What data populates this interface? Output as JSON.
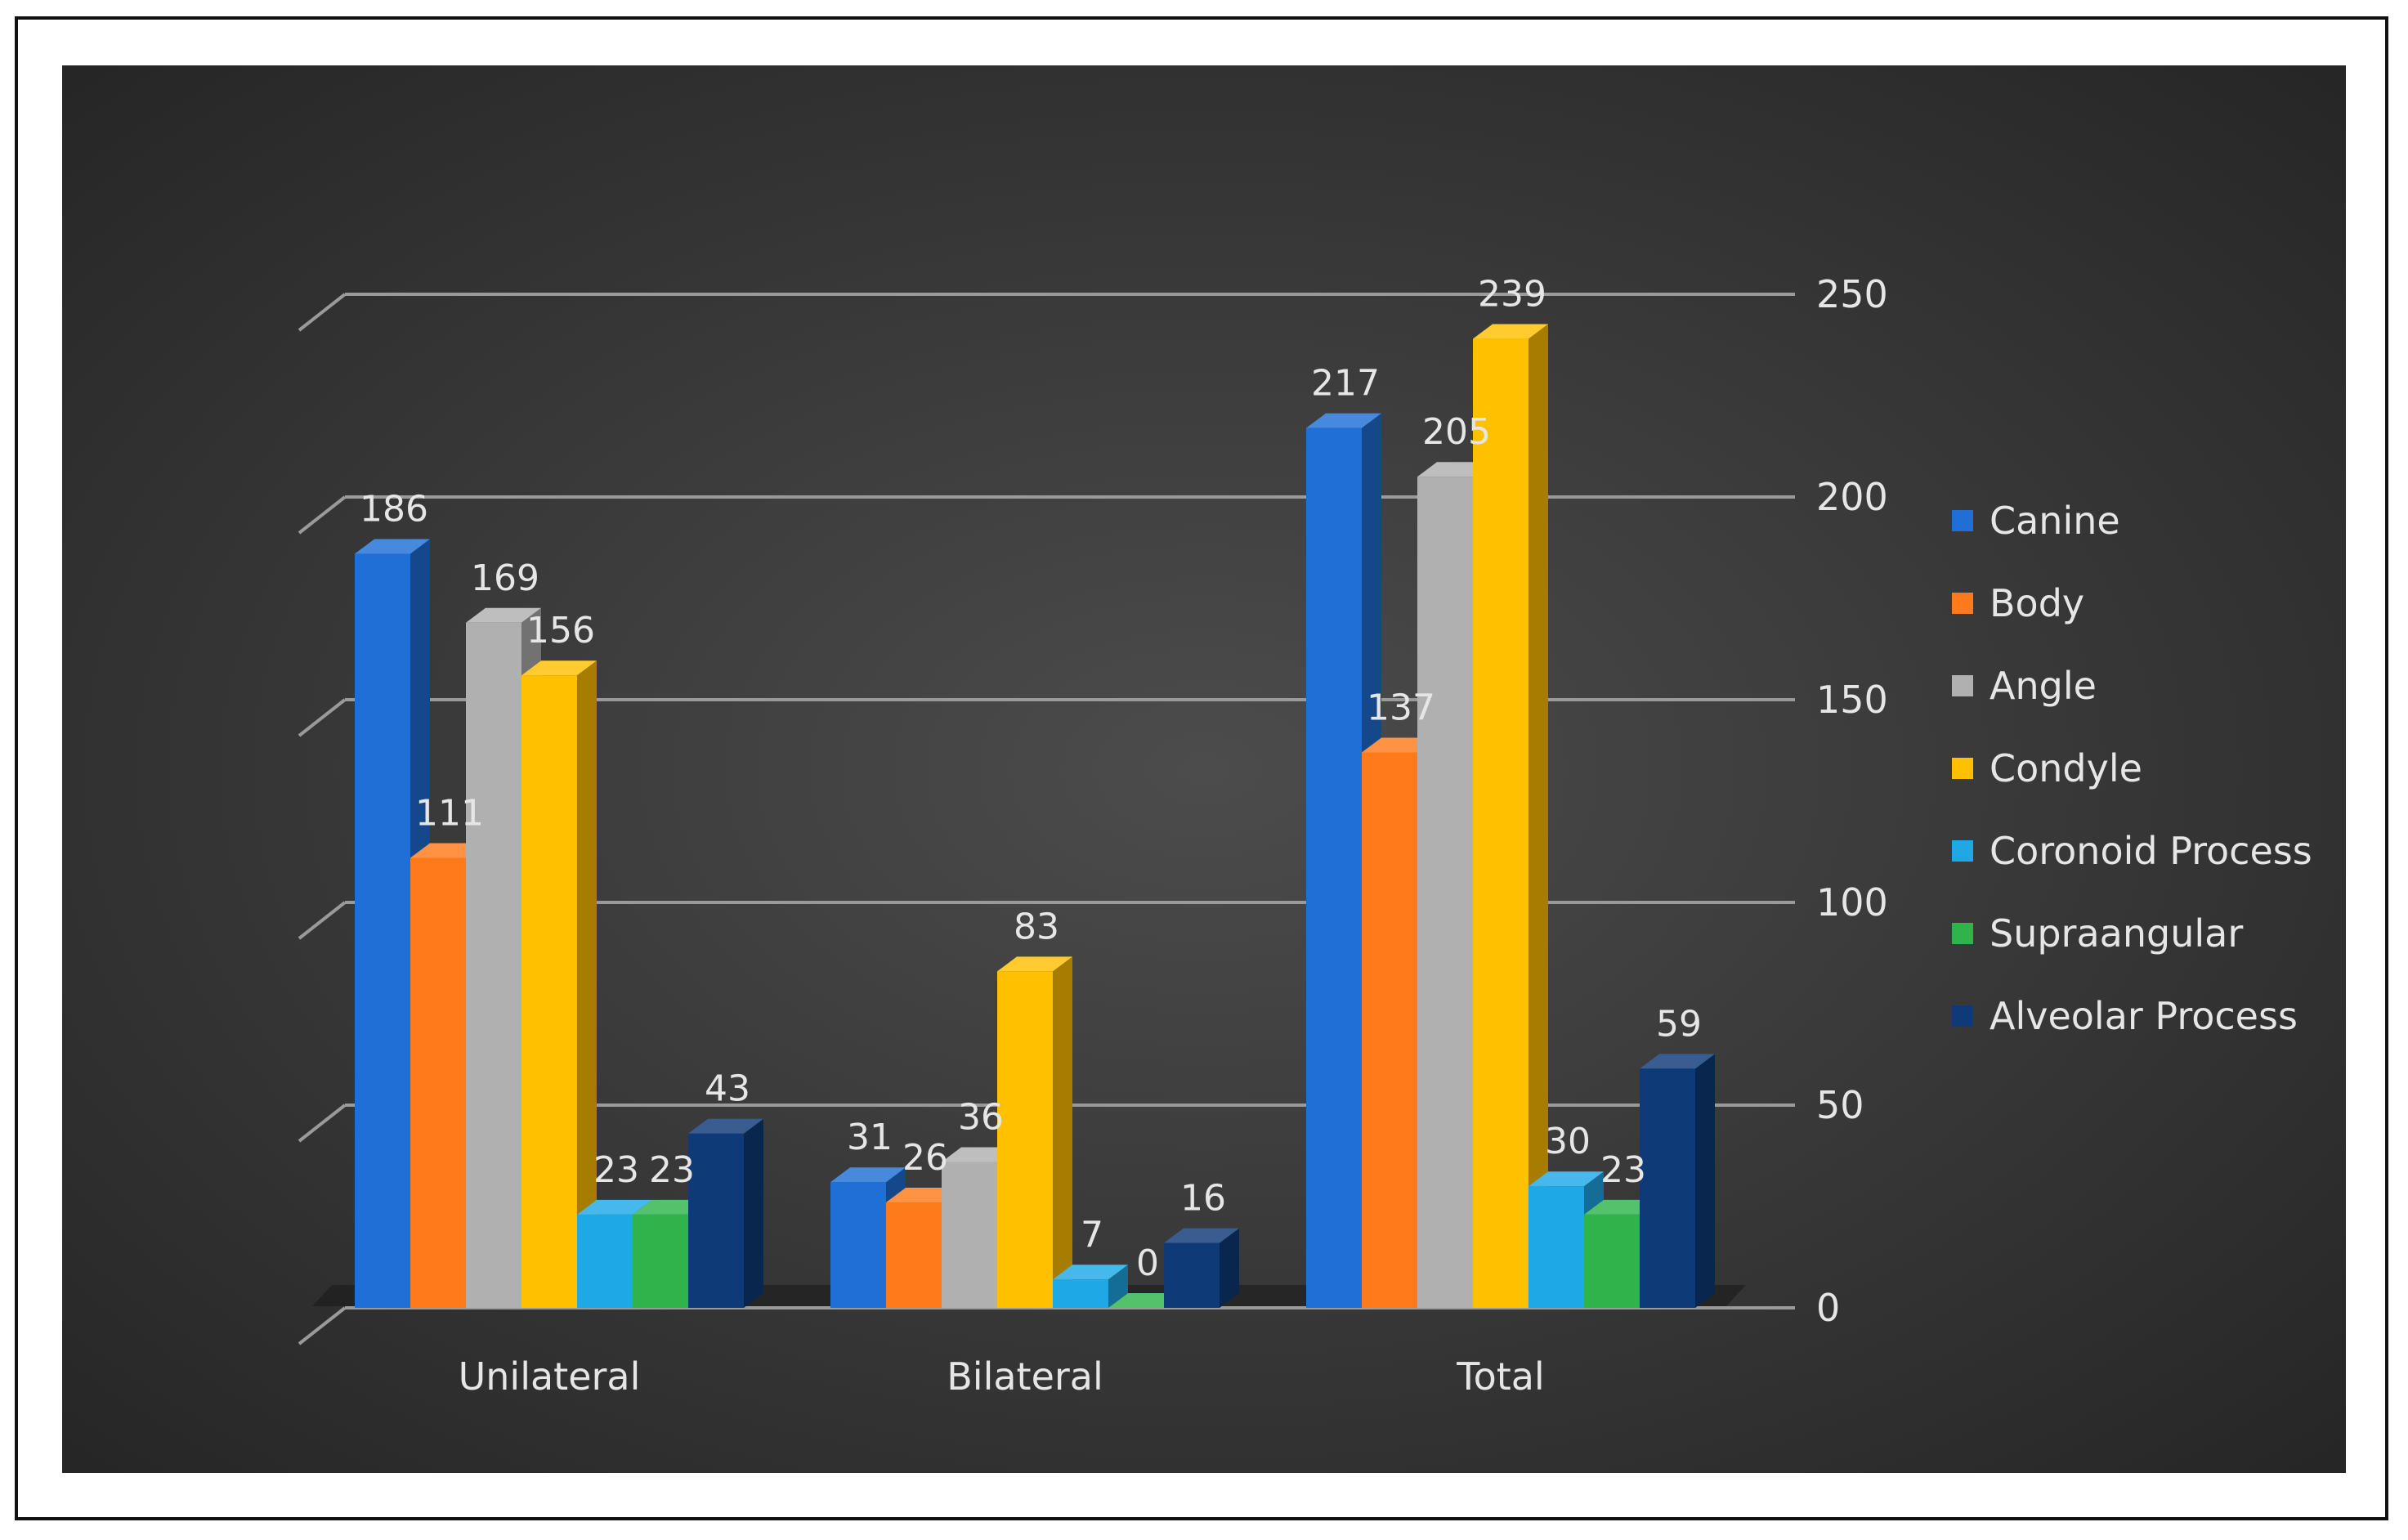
{
  "chart_data": {
    "type": "bar",
    "title": "",
    "xlabel": "",
    "ylabel": "",
    "ylim": [
      0,
      250
    ],
    "yticks": [
      "0",
      "50",
      "100",
      "150",
      "200",
      "250"
    ],
    "grid": true,
    "legend_position": "right",
    "categories": [
      "Unilateral",
      "Bilateral",
      "Total"
    ],
    "series": [
      {
        "name": "Canine",
        "values": [
          186,
          31,
          217
        ],
        "color": "#1f6fd6"
      },
      {
        "name": "Body",
        "values": [
          111,
          26,
          137
        ],
        "color": "#ff7a1a"
      },
      {
        "name": "Angle",
        "values": [
          169,
          36,
          205
        ],
        "color": "#b0b0b0"
      },
      {
        "name": "Condyle",
        "values": [
          156,
          83,
          239
        ],
        "color": "#ffc000"
      },
      {
        "name": "Coronoid Process",
        "values": [
          23,
          7,
          30
        ],
        "color": "#1fa8e6"
      },
      {
        "name": "Supraangular",
        "values": [
          23,
          0,
          23
        ],
        "color": "#2fb34a"
      },
      {
        "name": "Alveolar Process",
        "values": [
          43,
          16,
          59
        ],
        "color": "#0e3a78"
      }
    ],
    "data_labels": [
      [
        "186",
        "31",
        "217"
      ],
      [
        "111",
        "26",
        "137"
      ],
      [
        "169",
        "36",
        "205"
      ],
      [
        "156",
        "83",
        "239"
      ],
      [
        "23",
        "7",
        "30"
      ],
      [
        "23",
        "0",
        "23"
      ],
      [
        "43",
        "16",
        "59"
      ]
    ],
    "background_color": "#3a3a3a",
    "text_color": "#e6e6e6",
    "gridline_color": "#9a9a9a"
  }
}
